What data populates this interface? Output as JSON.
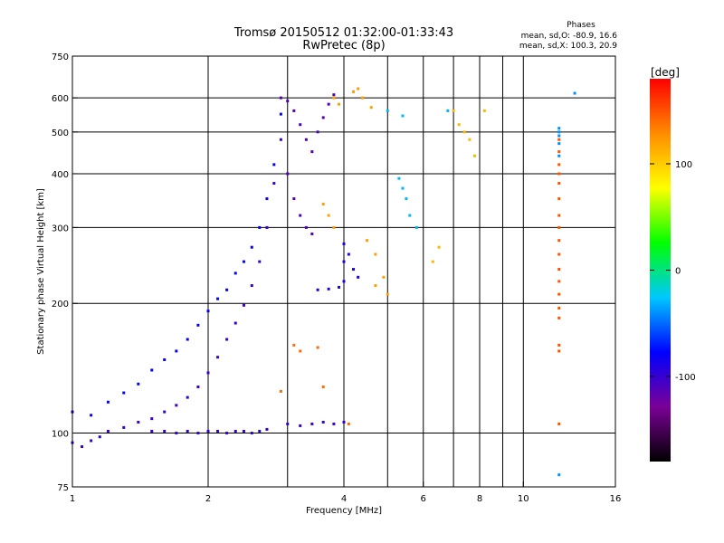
{
  "header": {
    "title": "Tromsø 20150512 01:32:00-01:33:43",
    "subtitle": "RwPretec (8p)"
  },
  "stats": {
    "heading": "Phases",
    "line_o": "mean, sd,O: -80.9, 16.6",
    "line_x": "mean, sd,X: 100.3, 20.9"
  },
  "colorbar": {
    "label": "[deg]",
    "ticks": [
      "100",
      "0",
      "-100"
    ],
    "tick_values": [
      100,
      0,
      -100
    ],
    "range": [
      -180,
      180
    ],
    "colors": [
      "#000000",
      "#7a0096",
      "#0000ff",
      "#00c8ff",
      "#00ff00",
      "#ffff00",
      "#ff8c00",
      "#ff0000"
    ]
  },
  "chart_data": {
    "type": "scatter",
    "title": "Tromsø 20150512 01:32:00-01:33:43",
    "subtitle": "RwPretec (8p)",
    "xlabel": "Frequency [MHz]",
    "ylabel": "Stationary phase Virtual Height [km]",
    "x_scale": "log",
    "y_scale": "log",
    "xlim": [
      1,
      16
    ],
    "ylim": [
      75,
      750
    ],
    "x_ticks": [
      1,
      2,
      4,
      6,
      8,
      10,
      16
    ],
    "x_tick_labels": [
      "1",
      "2",
      "4",
      "6",
      "8",
      "10",
      "16"
    ],
    "y_ticks": [
      75,
      100,
      200,
      300,
      400,
      500,
      600,
      750
    ],
    "y_tick_labels": [
      "75",
      "100",
      "200",
      "300",
      "400",
      "500",
      "600",
      "750"
    ],
    "x_gridlines": [
      2,
      3,
      4,
      5,
      6,
      7,
      8,
      9,
      10
    ],
    "y_gridlines": [
      100,
      200,
      300,
      400,
      500,
      600
    ],
    "grid": true,
    "color_scale": "phase [deg]",
    "series": [
      {
        "phase": -100,
        "points": [
          [
            1.0,
            95
          ],
          [
            1.05,
            93
          ],
          [
            1.1,
            96
          ],
          [
            1.15,
            98
          ],
          [
            1.2,
            101
          ],
          [
            1.3,
            103
          ],
          [
            1.4,
            106
          ],
          [
            1.5,
            108
          ],
          [
            1.6,
            112
          ],
          [
            1.7,
            116
          ],
          [
            1.8,
            121
          ],
          [
            1.9,
            128
          ],
          [
            2.0,
            138
          ],
          [
            2.1,
            150
          ],
          [
            2.2,
            165
          ],
          [
            2.3,
            180
          ],
          [
            2.4,
            198
          ],
          [
            2.5,
            220
          ],
          [
            2.6,
            250
          ],
          [
            2.7,
            300
          ],
          [
            2.8,
            380
          ],
          [
            2.9,
            480
          ]
        ]
      },
      {
        "phase": -80,
        "points": [
          [
            1.0,
            112
          ],
          [
            1.1,
            110
          ],
          [
            1.2,
            118
          ],
          [
            1.3,
            124
          ],
          [
            1.4,
            130
          ],
          [
            1.5,
            140
          ],
          [
            1.6,
            148
          ],
          [
            1.7,
            155
          ],
          [
            1.8,
            165
          ],
          [
            1.9,
            178
          ],
          [
            2.0,
            192
          ],
          [
            2.1,
            205
          ],
          [
            2.2,
            215
          ],
          [
            2.3,
            235
          ],
          [
            2.4,
            250
          ],
          [
            2.5,
            270
          ],
          [
            2.6,
            300
          ],
          [
            2.7,
            350
          ],
          [
            2.8,
            420
          ],
          [
            2.9,
            550
          ]
        ]
      },
      {
        "phase": -100,
        "points": [
          [
            1.5,
            101
          ],
          [
            1.6,
            101
          ],
          [
            1.7,
            100
          ],
          [
            1.8,
            101
          ],
          [
            1.9,
            100
          ],
          [
            2.0,
            101
          ],
          [
            2.1,
            101
          ],
          [
            2.2,
            100
          ],
          [
            2.3,
            101
          ],
          [
            2.4,
            101
          ],
          [
            2.5,
            100
          ],
          [
            2.6,
            101
          ],
          [
            2.7,
            102
          ]
        ]
      },
      {
        "phase": -110,
        "points": [
          [
            2.9,
            600
          ],
          [
            3.0,
            590
          ],
          [
            3.1,
            560
          ],
          [
            3.2,
            520
          ],
          [
            3.3,
            480
          ],
          [
            3.4,
            450
          ],
          [
            3.5,
            500
          ],
          [
            3.6,
            540
          ],
          [
            3.7,
            580
          ],
          [
            3.8,
            610
          ],
          [
            3.0,
            400
          ],
          [
            3.1,
            350
          ],
          [
            3.2,
            320
          ],
          [
            3.3,
            300
          ],
          [
            3.4,
            290
          ]
        ]
      },
      {
        "phase": -100,
        "points": [
          [
            3.0,
            105
          ],
          [
            3.2,
            104
          ],
          [
            3.4,
            105
          ],
          [
            3.6,
            106
          ],
          [
            3.8,
            105
          ],
          [
            4.0,
            106
          ]
        ]
      },
      {
        "phase": -90,
        "points": [
          [
            3.5,
            215
          ],
          [
            3.7,
            216
          ],
          [
            3.9,
            218
          ],
          [
            4.0,
            225
          ],
          [
            4.0,
            250
          ],
          [
            4.0,
            275
          ],
          [
            4.1,
            260
          ],
          [
            4.2,
            240
          ],
          [
            4.3,
            230
          ]
        ]
      },
      {
        "phase": 120,
        "points": [
          [
            3.8,
            600
          ],
          [
            3.9,
            580
          ],
          [
            4.2,
            620
          ],
          [
            4.3,
            630
          ],
          [
            4.4,
            600
          ],
          [
            4.6,
            570
          ],
          [
            3.6,
            340
          ],
          [
            3.7,
            320
          ],
          [
            3.8,
            300
          ],
          [
            4.5,
            280
          ],
          [
            4.7,
            260
          ],
          [
            4.9,
            230
          ],
          [
            4.7,
            220
          ],
          [
            5.0,
            210
          ]
        ]
      },
      {
        "phase": 140,
        "points": [
          [
            3.1,
            160
          ],
          [
            3.2,
            155
          ],
          [
            3.5,
            158
          ],
          [
            2.9,
            125
          ],
          [
            3.6,
            128
          ],
          [
            4.1,
            105
          ]
        ]
      },
      {
        "phase": -30,
        "points": [
          [
            5.3,
            390
          ],
          [
            5.4,
            370
          ],
          [
            5.5,
            350
          ],
          [
            5.6,
            320
          ],
          [
            5.8,
            300
          ],
          [
            5.0,
            560
          ],
          [
            5.4,
            545
          ],
          [
            6.8,
            560
          ]
        ]
      },
      {
        "phase": 110,
        "points": [
          [
            6.3,
            250
          ],
          [
            6.5,
            270
          ],
          [
            7.0,
            560
          ],
          [
            7.2,
            520
          ],
          [
            7.4,
            500
          ],
          [
            7.6,
            480
          ],
          [
            7.8,
            440
          ],
          [
            8.2,
            560
          ]
        ]
      },
      {
        "phase": 150,
        "points": [
          [
            12.0,
            480
          ],
          [
            12.0,
            450
          ],
          [
            12.0,
            420
          ],
          [
            12.0,
            400
          ],
          [
            12.0,
            380
          ],
          [
            12.0,
            350
          ],
          [
            12.0,
            320
          ],
          [
            12.0,
            300
          ],
          [
            12.0,
            280
          ],
          [
            12.0,
            260
          ],
          [
            12.0,
            240
          ],
          [
            12.0,
            225
          ],
          [
            12.0,
            210
          ],
          [
            12.0,
            195
          ],
          [
            12.0,
            185
          ],
          [
            12.0,
            160
          ],
          [
            12.0,
            155
          ],
          [
            12.0,
            105
          ]
        ]
      },
      {
        "phase": -40,
        "points": [
          [
            12.0,
            510
          ],
          [
            12.0,
            500
          ],
          [
            12.0,
            490
          ],
          [
            12.0,
            470
          ],
          [
            12.0,
            440
          ],
          [
            12.0,
            80
          ],
          [
            13.0,
            615
          ]
        ]
      }
    ]
  }
}
